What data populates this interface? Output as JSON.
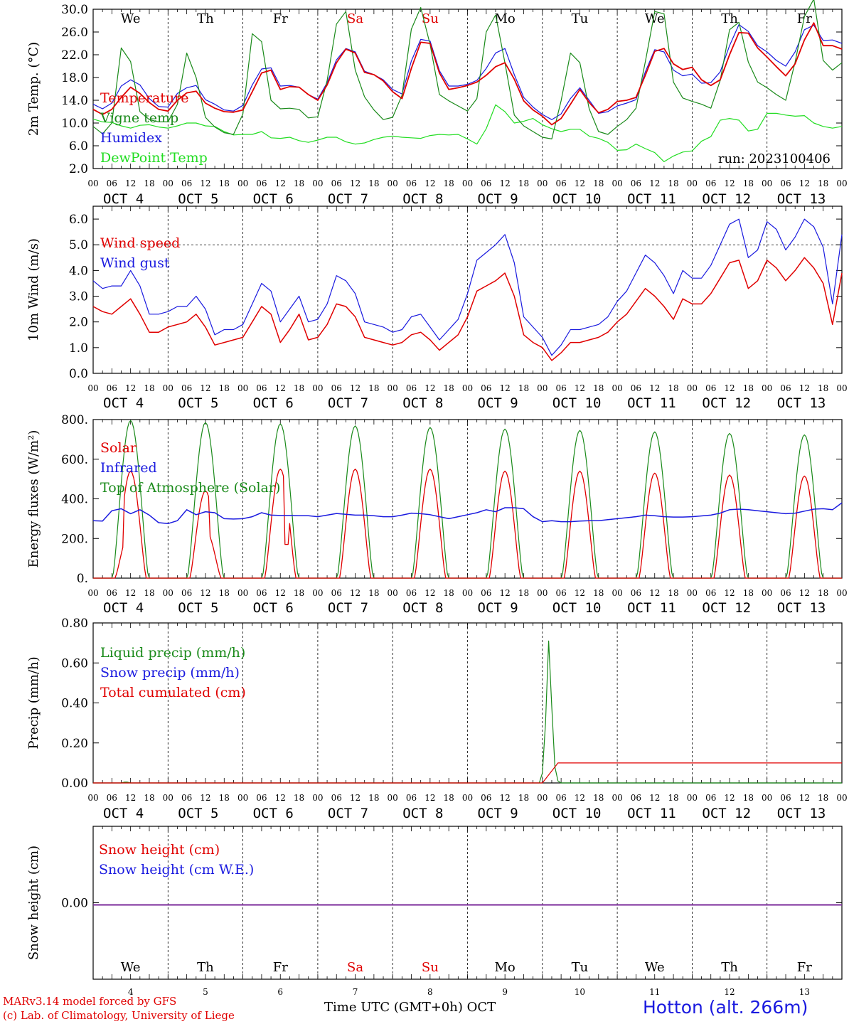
{
  "days": {
    "weekdays": [
      {
        "label": "We",
        "color": "#000000"
      },
      {
        "label": "Th",
        "color": "#000000"
      },
      {
        "label": "Fr",
        "color": "#000000"
      },
      {
        "label": "Sa",
        "color": "#e00000"
      },
      {
        "label": "Su",
        "color": "#e00000"
      },
      {
        "label": "Mo",
        "color": "#000000"
      },
      {
        "label": "Tu",
        "color": "#000000"
      },
      {
        "label": "We",
        "color": "#000000"
      },
      {
        "label": "Th",
        "color": "#000000"
      },
      {
        "label": "Fr",
        "color": "#000000"
      }
    ],
    "date_labels": [
      "OCT  4",
      "OCT  5",
      "OCT  6",
      "OCT  7",
      "OCT  8",
      "OCT  9",
      "OCT 10",
      "OCT 11",
      "OCT 12",
      "OCT 13"
    ],
    "bottom_numbers": [
      "4",
      "5",
      "6",
      "7",
      "8",
      "9",
      "10",
      "11",
      "12",
      "13"
    ],
    "hour_ticks": [
      "00",
      "06",
      "12",
      "18"
    ],
    "final_tick": "00"
  },
  "colors": {
    "red": "#e00000",
    "green": "#1a8a1a",
    "blue": "#1a1adf",
    "lightgreen": "#22dd22",
    "purple": "#7a2a9a"
  },
  "footer": {
    "model_line": "MARv3.14 model forced by GFS",
    "lab_line": "(c) Lab. of Climatology, University of Liege",
    "time_label": "Time UTC (GMT+0h) OCT",
    "station": "Hotton (alt. 266m)"
  },
  "chart_data": [
    {
      "type": "line",
      "ylabel": "2m Temp. (°C)",
      "ylim": [
        2.0,
        30.0
      ],
      "yticks": [
        "2.0",
        "6.0",
        "10.0",
        "14.0",
        "18.0",
        "22.0",
        "26.0",
        "30.0"
      ],
      "annotation": "run: 2023100406",
      "x_hours": [
        0,
        3,
        6,
        9,
        12,
        15,
        18,
        21,
        24,
        27,
        30,
        33,
        36,
        39,
        42,
        45,
        48,
        51,
        54,
        57,
        60,
        63,
        66,
        69,
        72,
        75,
        78,
        81,
        84,
        87,
        90,
        93,
        96,
        99,
        102,
        105,
        108,
        111,
        114,
        117,
        120,
        123,
        126,
        129,
        132,
        135,
        138,
        141,
        144,
        147,
        150,
        153,
        156,
        159,
        162,
        165,
        168,
        171,
        174,
        177,
        180,
        183,
        186,
        189,
        192,
        195,
        198,
        201,
        204,
        207,
        210,
        213,
        216,
        219,
        222,
        225,
        228,
        231,
        234,
        237,
        240
      ],
      "series": [
        {
          "name": "Temperature",
          "color": "#e00000",
          "width": 1.8,
          "values": [
            12.4,
            11.5,
            12.4,
            14.5,
            16.3,
            15.2,
            13.6,
            12.4,
            12.1,
            14.0,
            15.3,
            15.6,
            13.5,
            12.6,
            12.0,
            11.9,
            12.3,
            15.5,
            18.8,
            19.3,
            15.9,
            16.4,
            16.3,
            15.0,
            14.0,
            16.7,
            20.6,
            23.0,
            22.3,
            18.9,
            18.5,
            17.4,
            15.5,
            14.3,
            19.6,
            24.2,
            24.0,
            18.8,
            15.9,
            16.2,
            16.6,
            17.2,
            18.4,
            19.9,
            20.6,
            17.7,
            13.9,
            12.3,
            11.2,
            9.7,
            10.8,
            13.3,
            15.9,
            13.6,
            11.8,
            12.4,
            13.8,
            14.0,
            14.5,
            18.4,
            22.6,
            23.1,
            20.4,
            19.4,
            19.8,
            17.6,
            16.6,
            17.6,
            22.0,
            25.9,
            25.8,
            23.2,
            21.6,
            19.9,
            18.3,
            20.4,
            24.6,
            27.6,
            23.6,
            23.6,
            23.0
          ]
        },
        {
          "name": "Vigne temp",
          "color": "#1a8a1a",
          "width": 1.2,
          "values": [
            9.4,
            8.1,
            10.0,
            23.2,
            20.8,
            12.0,
            10.6,
            10.2,
            10.2,
            13.3,
            22.3,
            18.0,
            11.0,
            9.3,
            8.3,
            8.0,
            11.6,
            25.7,
            24.3,
            14.0,
            12.5,
            12.6,
            12.4,
            10.9,
            11.1,
            17.5,
            27.4,
            29.6,
            19.3,
            14.6,
            12.3,
            10.6,
            11.0,
            14.9,
            26.5,
            30.3,
            23.8,
            15.0,
            13.9,
            13.0,
            12.1,
            14.3,
            26.0,
            29.0,
            20.6,
            11.4,
            9.5,
            8.5,
            7.5,
            7.2,
            13.9,
            22.3,
            20.6,
            12.5,
            8.5,
            8.0,
            9.4,
            10.6,
            12.6,
            20.8,
            29.6,
            29.2,
            17.2,
            14.4,
            13.8,
            13.3,
            12.6,
            17.5,
            26.4,
            27.7,
            20.7,
            17.2,
            16.2,
            15.0,
            14.0,
            20.7,
            28.7,
            31.8,
            21.0,
            19.3,
            20.6
          ]
        },
        {
          "name": "Humidex",
          "color": "#1a1adf",
          "width": 1.2,
          "values": [
            13.3,
            12.5,
            13.5,
            16.5,
            17.6,
            16.7,
            14.3,
            12.9,
            12.8,
            15.2,
            16.2,
            16.6,
            14.1,
            13.3,
            12.3,
            12.1,
            13.1,
            16.7,
            19.5,
            19.7,
            16.5,
            16.6,
            16.3,
            15.0,
            14.2,
            17.1,
            21.1,
            23.1,
            22.5,
            19.1,
            18.5,
            17.6,
            15.9,
            15.1,
            20.9,
            24.7,
            24.4,
            19.2,
            16.5,
            16.5,
            16.8,
            17.5,
            19.6,
            22.3,
            23.1,
            18.5,
            14.5,
            12.8,
            11.5,
            10.6,
            11.6,
            14.3,
            16.2,
            14.0,
            11.7,
            12.0,
            13.0,
            13.5,
            14.1,
            19.0,
            22.9,
            22.5,
            19.3,
            18.3,
            18.6,
            17.0,
            17.1,
            19.0,
            23.6,
            27.3,
            26.1,
            23.6,
            22.5,
            21.0,
            20.0,
            22.5,
            26.4,
            27.2,
            24.5,
            24.6,
            24.0
          ]
        },
        {
          "name": "DewPoint Temp",
          "color": "#22dd22",
          "width": 1.2,
          "values": [
            10.7,
            10.2,
            10.1,
            9.5,
            9.1,
            9.6,
            9.7,
            9.3,
            9.1,
            9.5,
            10.0,
            10.0,
            9.5,
            9.4,
            8.5,
            7.9,
            8.0,
            8.0,
            8.5,
            7.4,
            7.3,
            7.5,
            6.9,
            6.6,
            7.0,
            7.5,
            7.5,
            6.7,
            6.3,
            6.5,
            7.1,
            7.5,
            7.7,
            7.5,
            7.4,
            7.3,
            7.8,
            8.0,
            7.9,
            8.0,
            7.2,
            6.3,
            9.0,
            13.2,
            12.0,
            10.0,
            10.3,
            10.8,
            9.7,
            9.0,
            8.5,
            8.9,
            8.9,
            7.7,
            7.3,
            6.6,
            5.2,
            5.3,
            6.3,
            5.5,
            4.8,
            3.2,
            4.2,
            4.9,
            5.1,
            6.8,
            7.6,
            10.5,
            10.8,
            10.5,
            8.6,
            8.9,
            11.7,
            11.7,
            11.4,
            11.2,
            11.3,
            10.0,
            9.4,
            9.1,
            9.4
          ]
        }
      ]
    },
    {
      "type": "line",
      "ylabel": "10m Wind (m/s)",
      "ylim": [
        0.0,
        6.5
      ],
      "yticks": [
        "0.0",
        "1.0",
        "2.0",
        "3.0",
        "4.0",
        "5.0",
        "6.0"
      ],
      "reference_line": 5.0,
      "x_hours": [
        0,
        3,
        6,
        9,
        12,
        15,
        18,
        21,
        24,
        27,
        30,
        33,
        36,
        39,
        42,
        45,
        48,
        51,
        54,
        57,
        60,
        63,
        66,
        69,
        72,
        75,
        78,
        81,
        84,
        87,
        90,
        93,
        96,
        99,
        102,
        105,
        108,
        111,
        114,
        117,
        120,
        123,
        126,
        129,
        132,
        135,
        138,
        141,
        144,
        147,
        150,
        153,
        156,
        159,
        162,
        165,
        168,
        171,
        174,
        177,
        180,
        183,
        186,
        189,
        192,
        195,
        198,
        201,
        204,
        207,
        210,
        213,
        216,
        219,
        222,
        225,
        228,
        231,
        234,
        237,
        240
      ],
      "series": [
        {
          "name": "Wind speed",
          "color": "#e00000",
          "width": 1.5,
          "values": [
            2.6,
            2.4,
            2.3,
            2.6,
            2.9,
            2.3,
            1.6,
            1.6,
            1.8,
            1.9,
            2.0,
            2.3,
            1.8,
            1.1,
            1.2,
            1.3,
            1.4,
            2.0,
            2.6,
            2.3,
            1.2,
            1.7,
            2.3,
            1.3,
            1.4,
            1.9,
            2.7,
            2.6,
            2.2,
            1.4,
            1.3,
            1.2,
            1.1,
            1.2,
            1.5,
            1.6,
            1.3,
            0.9,
            1.2,
            1.5,
            2.2,
            3.2,
            3.4,
            3.6,
            3.9,
            3.0,
            1.5,
            1.2,
            1.0,
            0.5,
            0.8,
            1.2,
            1.2,
            1.3,
            1.4,
            1.6,
            2.0,
            2.3,
            2.8,
            3.3,
            3.0,
            2.6,
            2.1,
            2.9,
            2.7,
            2.7,
            3.1,
            3.7,
            4.3,
            4.4,
            3.3,
            3.6,
            4.4,
            4.1,
            3.6,
            4.0,
            4.5,
            4.1,
            3.5,
            1.9,
            3.9
          ]
        },
        {
          "name": "Wind gust",
          "color": "#1a1adf",
          "width": 1.2,
          "values": [
            3.6,
            3.3,
            3.4,
            3.4,
            4.0,
            3.4,
            2.3,
            2.3,
            2.4,
            2.6,
            2.6,
            3.0,
            2.5,
            1.5,
            1.7,
            1.7,
            1.9,
            2.7,
            3.5,
            3.2,
            2.0,
            2.5,
            3.0,
            2.0,
            2.1,
            2.7,
            3.8,
            3.6,
            3.1,
            2.0,
            1.9,
            1.8,
            1.6,
            1.7,
            2.2,
            2.3,
            1.8,
            1.3,
            1.7,
            2.1,
            3.1,
            4.4,
            4.7,
            5.0,
            5.4,
            4.3,
            2.2,
            1.8,
            1.4,
            0.7,
            1.1,
            1.7,
            1.7,
            1.8,
            1.9,
            2.2,
            2.8,
            3.2,
            3.9,
            4.6,
            4.3,
            3.8,
            3.1,
            4.0,
            3.7,
            3.7,
            4.2,
            5.0,
            5.8,
            6.0,
            4.5,
            4.8,
            5.9,
            5.6,
            4.8,
            5.3,
            6.0,
            5.7,
            4.9,
            2.7,
            5.4
          ]
        }
      ]
    },
    {
      "type": "line",
      "ylabel": "Energy fluxes (W/m²)",
      "ylim": [
        0,
        800
      ],
      "yticks": [
        "0.",
        "200.",
        "400.",
        "600.",
        "800."
      ],
      "solar_peaks": [
        540,
        440,
        550,
        550,
        550,
        540,
        540,
        530,
        520,
        515
      ],
      "toa_peaks": [
        795,
        785,
        778,
        768,
        760,
        752,
        745,
        738,
        730,
        723
      ],
      "infrared_values": [
        290,
        288,
        340,
        350,
        325,
        345,
        318,
        280,
        275,
        290,
        345,
        320,
        335,
        330,
        300,
        298,
        300,
        310,
        330,
        318,
        316,
        316,
        315,
        315,
        310,
        318,
        326,
        322,
        318,
        318,
        315,
        310,
        310,
        318,
        328,
        325,
        320,
        310,
        300,
        310,
        320,
        330,
        345,
        335,
        355,
        355,
        350,
        310,
        285,
        290,
        285,
        285,
        288,
        290,
        290,
        295,
        300,
        305,
        310,
        318,
        315,
        310,
        308,
        308,
        310,
        314,
        318,
        328,
        345,
        348,
        345,
        340,
        335,
        330,
        325,
        328,
        338,
        348,
        350,
        345,
        380
      ],
      "series": [
        {
          "name": "Solar",
          "color": "#e00000"
        },
        {
          "name": "Infrared",
          "color": "#1a1adf"
        },
        {
          "name": "Top of Atmosphere (Solar)",
          "color": "#1a8a1a"
        }
      ]
    },
    {
      "type": "line",
      "ylabel": "Precip (mm/h)",
      "ylim": [
        0.0,
        0.8
      ],
      "yticks": [
        "0.00",
        "0.20",
        "0.40",
        "0.60",
        "0.80"
      ],
      "liquid_spike": {
        "hour": 146,
        "value": 0.71
      },
      "total_cumulated_final": 0.1,
      "series": [
        {
          "name": "Liquid precip (mm/h)",
          "color": "#1a8a1a"
        },
        {
          "name": "Snow precip (mm/h)",
          "color": "#1a1adf"
        },
        {
          "name": "Total cumulated (cm)",
          "color": "#e00000"
        }
      ]
    },
    {
      "type": "line",
      "ylabel": "Snow height (cm)",
      "yticks": [
        "0.00"
      ],
      "constant_value": 0.0,
      "series": [
        {
          "name": "Snow height (cm)",
          "color": "#e00000"
        },
        {
          "name": "Snow height (cm W.E.)",
          "color": "#1a1adf"
        }
      ]
    }
  ]
}
